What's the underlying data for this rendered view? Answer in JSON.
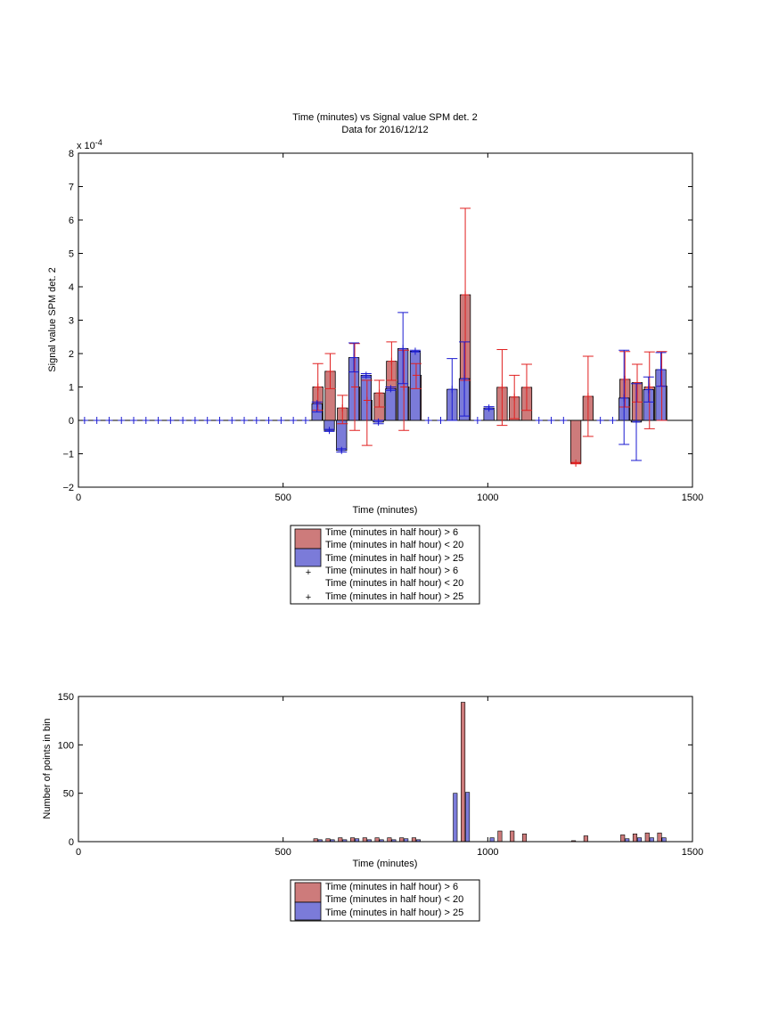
{
  "colors": {
    "red_bar": "#cd7b7b",
    "blue_bar": "#7b7bd9",
    "red_err": "#e02020",
    "blue_err": "#1a1ad0",
    "axis": "#000000"
  },
  "chart_data": [
    {
      "type": "bar",
      "title": "Time (minutes) vs Signal value SPM det. 2",
      "subtitle": "Data for 2016/12/12",
      "xlabel": "Time (minutes)",
      "ylabel": "Signal value SPM det. 2",
      "xlim": [
        0,
        1500
      ],
      "ylim": [
        -2,
        8
      ],
      "y_exponent": "x 10",
      "y_exponent_power": "-4",
      "xticks": [
        "0",
        "500",
        "1000",
        "1500"
      ],
      "yticks": [
        "−2",
        "−1",
        "0",
        "1",
        "2",
        "3",
        "4",
        "5",
        "6",
        "7",
        "8"
      ],
      "legend": {
        "placement": "below",
        "entries": [
          "Time (minutes in half hour) > 6",
          "Time (minutes in half hour) < 20",
          "Time (minutes in half hour) > 25",
          "Time (minutes in half hour) > 6",
          "Time (minutes in half hour) < 20",
          "Time (minutes in half hour) > 25"
        ]
      },
      "series": [
        {
          "points": [
            {
              "x": 585,
              "y": 1.0,
              "lo": 0.3,
              "hi": 1.7
            },
            {
              "x": 615,
              "y": 1.47,
              "lo": 0.95,
              "hi": 2.0
            },
            {
              "x": 645,
              "y": 0.37,
              "lo": -0.1,
              "hi": 0.75
            },
            {
              "x": 675,
              "y": 1.0,
              "lo": -0.3,
              "hi": 2.3
            },
            {
              "x": 705,
              "y": 0.6,
              "lo": -0.75,
              "hi": 1.2
            },
            {
              "x": 735,
              "y": 0.82,
              "lo": 0.4,
              "hi": 1.2
            },
            {
              "x": 765,
              "y": 1.77,
              "lo": 1.2,
              "hi": 2.35
            },
            {
              "x": 795,
              "y": 1.0,
              "lo": -0.3,
              "hi": 2.1
            },
            {
              "x": 825,
              "y": 1.35,
              "lo": 0.95,
              "hi": 1.7
            },
            {
              "x": 945,
              "y": 3.76,
              "lo": 1.2,
              "hi": 6.35
            },
            {
              "x": 1035,
              "y": 0.99,
              "lo": -0.15,
              "hi": 2.12
            },
            {
              "x": 1065,
              "y": 0.7,
              "lo": 0.05,
              "hi": 1.35
            },
            {
              "x": 1095,
              "y": 0.99,
              "lo": 0.3,
              "hi": 1.68
            },
            {
              "x": 1215,
              "y": -1.28,
              "lo": -1.3,
              "hi": -1.26
            },
            {
              "x": 1245,
              "y": 0.72,
              "lo": -0.48,
              "hi": 1.92
            },
            {
              "x": 1335,
              "y": 1.23,
              "lo": 0.4,
              "hi": 2.06
            },
            {
              "x": 1365,
              "y": 1.13,
              "lo": 0.55,
              "hi": 1.68
            },
            {
              "x": 1395,
              "y": 1.0,
              "lo": -0.25,
              "hi": 2.05
            },
            {
              "x": 1425,
              "y": 1.03,
              "lo": 0.0,
              "hi": 2.06
            }
          ]
        },
        {
          "points": [
            {
              "x": 585,
              "y": 0.5,
              "lo": 0.25,
              "hi": 0.55
            },
            {
              "x": 615,
              "y": -0.3,
              "lo": -0.33,
              "hi": -0.27
            },
            {
              "x": 645,
              "y": -0.9,
              "lo": -0.95,
              "hi": -0.85
            },
            {
              "x": 675,
              "y": 1.88,
              "lo": 1.45,
              "hi": 2.32
            },
            {
              "x": 705,
              "y": 1.35,
              "lo": 1.3,
              "hi": 1.4
            },
            {
              "x": 735,
              "y": -0.05,
              "lo": -0.1,
              "hi": 0.0
            },
            {
              "x": 765,
              "y": 0.95,
              "lo": 0.9,
              "hi": 1.0
            },
            {
              "x": 795,
              "y": 2.15,
              "lo": 1.1,
              "hi": 3.23
            },
            {
              "x": 825,
              "y": 2.07,
              "lo": 2.05,
              "hi": 2.1
            },
            {
              "x": 915,
              "y": 0.93,
              "lo": 0.0,
              "hi": 1.85
            },
            {
              "x": 945,
              "y": 1.25,
              "lo": 0.13,
              "hi": 2.35
            },
            {
              "x": 1005,
              "y": 0.37,
              "lo": 0.33,
              "hi": 0.41
            },
            {
              "x": 1335,
              "y": 0.67,
              "lo": -0.72,
              "hi": 2.1
            },
            {
              "x": 1365,
              "y": -0.05,
              "lo": -1.2,
              "hi": 1.1
            },
            {
              "x": 1395,
              "y": 0.92,
              "lo": 0.55,
              "hi": 1.3
            },
            {
              "x": 1425,
              "y": 1.52,
              "lo": 1.02,
              "hi": 2.03
            }
          ],
          "zero_markers": [
            15,
            45,
            75,
            105,
            135,
            165,
            195,
            225,
            255,
            285,
            315,
            345,
            375,
            405,
            435,
            465,
            495,
            525,
            555,
            855,
            885,
            975,
            1125,
            1155,
            1185,
            1275,
            1305
          ]
        }
      ]
    },
    {
      "type": "bar",
      "xlabel": "Time (minutes)",
      "ylabel": "Number of points in bin",
      "xlim": [
        0,
        1500
      ],
      "ylim": [
        0,
        150
      ],
      "xticks": [
        "0",
        "500",
        "1000",
        "1500"
      ],
      "yticks": [
        "0",
        "50",
        "100",
        "150"
      ],
      "legend": {
        "placement": "below",
        "entries": [
          "Time (minutes in half hour) > 6",
          "Time (minutes in half hour) < 20",
          "Time (minutes in half hour) > 25"
        ]
      },
      "series": [
        {
          "points": [
            {
              "x": 585,
              "y": 3
            },
            {
              "x": 615,
              "y": 3
            },
            {
              "x": 645,
              "y": 4
            },
            {
              "x": 675,
              "y": 4
            },
            {
              "x": 705,
              "y": 4
            },
            {
              "x": 735,
              "y": 4
            },
            {
              "x": 765,
              "y": 4
            },
            {
              "x": 795,
              "y": 4
            },
            {
              "x": 825,
              "y": 4
            },
            {
              "x": 945,
              "y": 144
            },
            {
              "x": 1035,
              "y": 11
            },
            {
              "x": 1065,
              "y": 11
            },
            {
              "x": 1095,
              "y": 8
            },
            {
              "x": 1215,
              "y": 1
            },
            {
              "x": 1245,
              "y": 6
            },
            {
              "x": 1335,
              "y": 7
            },
            {
              "x": 1365,
              "y": 8
            },
            {
              "x": 1395,
              "y": 9
            },
            {
              "x": 1425,
              "y": 9
            }
          ]
        },
        {
          "points": [
            {
              "x": 585,
              "y": 2
            },
            {
              "x": 615,
              "y": 2
            },
            {
              "x": 645,
              "y": 2
            },
            {
              "x": 675,
              "y": 3
            },
            {
              "x": 705,
              "y": 2
            },
            {
              "x": 735,
              "y": 2
            },
            {
              "x": 765,
              "y": 2
            },
            {
              "x": 795,
              "y": 3
            },
            {
              "x": 825,
              "y": 2
            },
            {
              "x": 915,
              "y": 50
            },
            {
              "x": 945,
              "y": 51
            },
            {
              "x": 1005,
              "y": 4
            },
            {
              "x": 1335,
              "y": 3
            },
            {
              "x": 1365,
              "y": 4
            },
            {
              "x": 1395,
              "y": 4
            },
            {
              "x": 1425,
              "y": 4
            }
          ]
        }
      ]
    }
  ]
}
